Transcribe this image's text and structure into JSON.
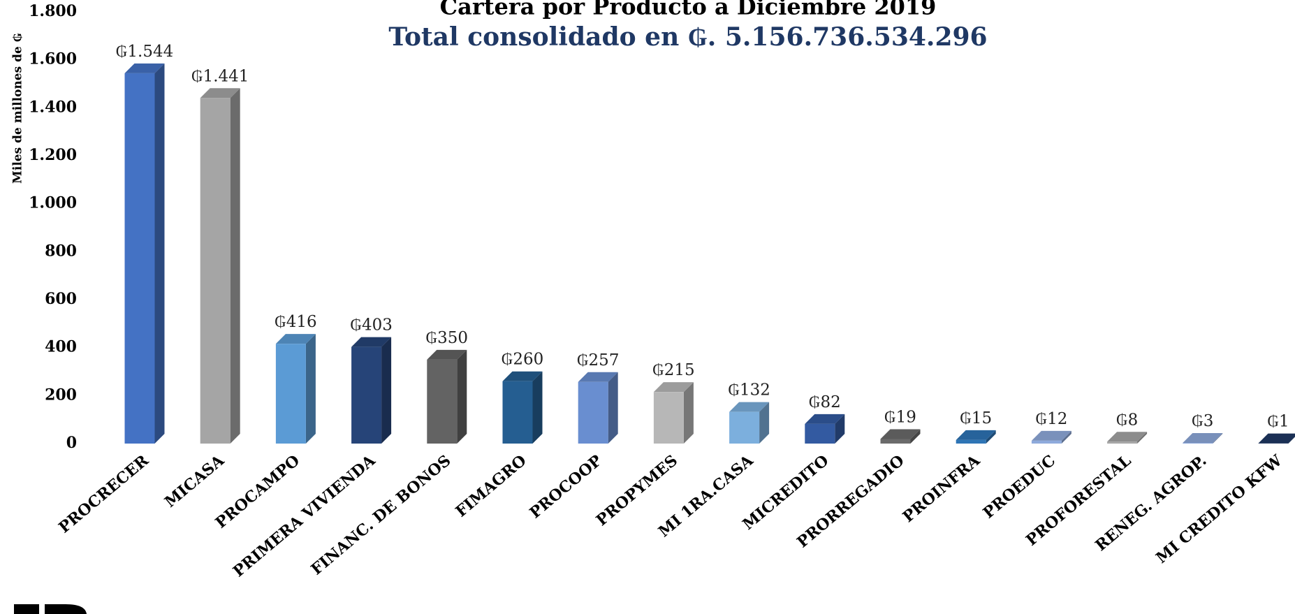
{
  "chart_data": {
    "type": "bar3d",
    "title": "Cartera por Producto a Diciembre 2019",
    "subtitle": "Total consolidado en ₲. 5.156.736.534.296",
    "y_label": "Miles de millones de ₲",
    "categories": [
      "PROCRECER",
      "MICASA",
      "PROCAMPO",
      "PRIMERA VIVIENDA",
      "FINANC. DE BONOS",
      "FIMAGRO",
      "PROCOOP",
      "PROPYMES",
      "MI 1RA.CASA",
      "MICREDITO",
      "PRORREGADIO",
      "PROINFRA",
      "PROEDUC",
      "PROFORESTAL",
      "RENEG. AGROP.",
      "MI CREDITO KFW"
    ],
    "values": [
      1544,
      1441,
      416,
      403,
      350,
      260,
      257,
      215,
      132,
      82,
      19,
      15,
      12,
      8,
      3,
      1
    ],
    "value_labels": [
      "₲1.544",
      "₲1.441",
      "₲416",
      "₲403",
      "₲350",
      "₲260",
      "₲257",
      "₲215",
      "₲132",
      "₲82",
      "₲19",
      "₲15",
      "₲12",
      "₲8",
      "₲3",
      "₲1"
    ],
    "colors": [
      "#4472c4",
      "#a5a5a5",
      "#5b9bd5",
      "#264478",
      "#636363",
      "#255e91",
      "#698ed0",
      "#b7b7b7",
      "#7cafdd",
      "#335aa1",
      "#6b6b6b",
      "#2e75b6",
      "#8faadc",
      "#a5a5a5",
      "#8ea9db",
      "#203864"
    ],
    "ylim": [
      0,
      1800
    ],
    "yticks": [
      0,
      200,
      400,
      600,
      800,
      {
        "value": 1000,
        "label": "1.000"
      },
      {
        "value": 1200,
        "label": "1.200"
      },
      {
        "value": 1400,
        "label": "1.400"
      },
      {
        "value": 1600,
        "label": "1.600"
      },
      {
        "value": 1800,
        "label": "1.800"
      }
    ],
    "grid": false
  }
}
